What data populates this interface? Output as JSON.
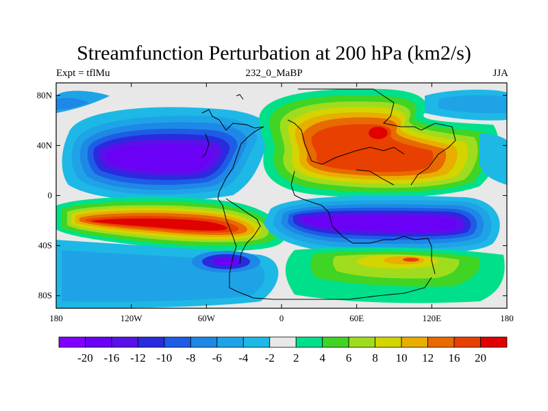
{
  "title": "Streamfunction Perturbation at 200 hPa (km2/s)",
  "left_label": "Expt = tflMu",
  "center_label": "232_0_MaBP",
  "right_label": "JJA",
  "map": {
    "lon_range": [
      -180,
      180
    ],
    "lat_range": [
      -90,
      90
    ],
    "lat_ticks": [
      {
        "lat": 80,
        "label": "80N"
      },
      {
        "lat": 40,
        "label": "40N"
      },
      {
        "lat": 0,
        "label": "0"
      },
      {
        "lat": -40,
        "label": "40S"
      },
      {
        "lat": -80,
        "label": "80S"
      }
    ],
    "lon_ticks": [
      {
        "lon": -180,
        "label": "180"
      },
      {
        "lon": -120,
        "label": "120W"
      },
      {
        "lon": -60,
        "label": "60W"
      },
      {
        "lon": 0,
        "label": "0"
      },
      {
        "lon": 60,
        "label": "60E"
      },
      {
        "lon": 120,
        "label": "120E"
      },
      {
        "lon": 180,
        "label": "180"
      }
    ]
  },
  "colorbar": {
    "colors": [
      "#7f00ff",
      "#6a00f5",
      "#5a10e8",
      "#2a2adf",
      "#1e5ce6",
      "#1e88e6",
      "#1ea4e6",
      "#1eb8e6",
      "#e8e8e8",
      "#00e08a",
      "#40d424",
      "#a0dc1e",
      "#d4d400",
      "#e8ae00",
      "#e86a00",
      "#e84000",
      "#e00000"
    ],
    "labels": [
      "-20",
      "-16",
      "-12",
      "-10",
      "-8",
      "-6",
      "-4",
      "-2",
      "2",
      "4",
      "6",
      "8",
      "10",
      "12",
      "16",
      "20"
    ]
  }
}
